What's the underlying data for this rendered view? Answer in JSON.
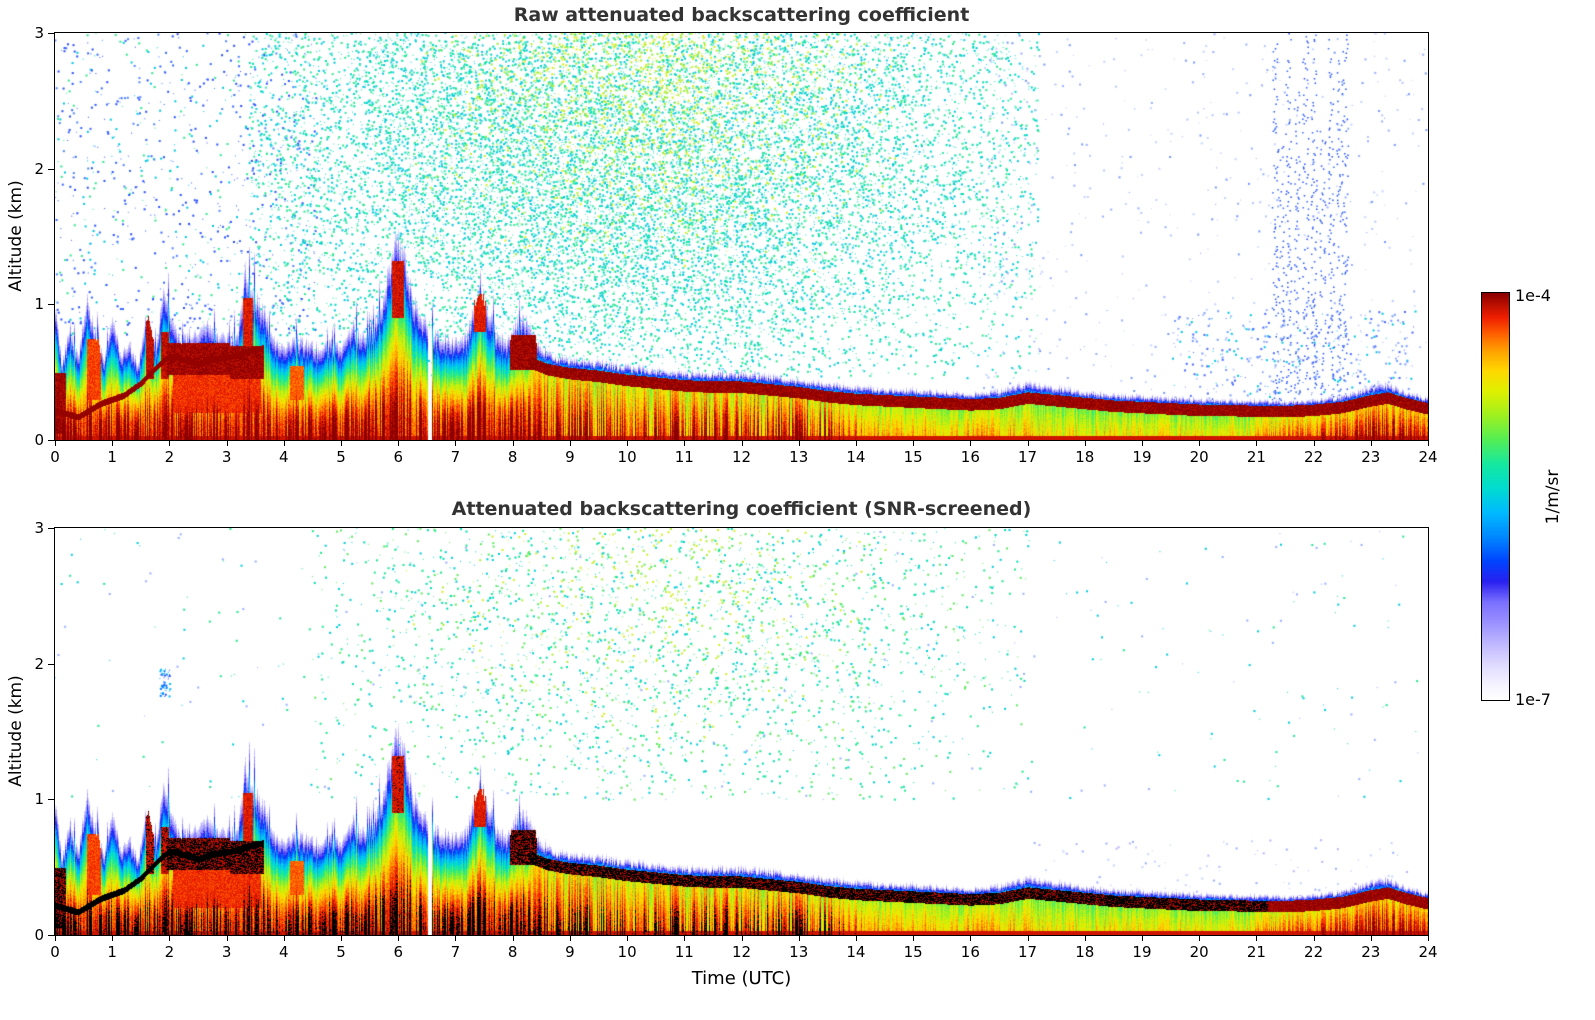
{
  "figure": {
    "background": "#ffffff"
  },
  "chart_data": {
    "type": "heatmap",
    "seed": 1337,
    "panels": [
      {
        "title": "Raw attenuated backscattering coefficient",
        "noise_regions": [
          {
            "t0": 0,
            "t1": 4.6,
            "z0": 0.75,
            "z1": 3,
            "density": 0.045,
            "colors": [
              "#2a50ff",
              "#3a6aff",
              "#5588ff",
              "#2a50ff",
              "#00c8e0",
              "#30e890"
            ]
          },
          {
            "t0": 3.4,
            "t1": 17.2,
            "z0": 0.45,
            "z1": 3,
            "density": 0.45,
            "gauss": {
              "tc": 10,
              "tw": 3.9,
              "zc": 2.3,
              "zw": 1.15
            },
            "colors": [
              "#00d8c8",
              "#00e0a8",
              "#30e890",
              "#00c8e0",
              "#40e8b0",
              "#20cfe0"
            ],
            "warm_colors": [
              "#b8ee30",
              "#d8f020",
              "#90ee40"
            ]
          },
          {
            "t0": 16.2,
            "t1": 24,
            "z0": 0.35,
            "z1": 3,
            "density": 0.014,
            "colors": [
              "#9ab0ff",
              "#b8c8ff",
              "#7a9aff",
              "#c8d4ff"
            ]
          },
          {
            "t0": 19.5,
            "t1": 23.8,
            "z0": 0.3,
            "z1": 0.95,
            "density": 0.05,
            "colors": [
              "#4a6aff",
              "#00c8e0",
              "#7aa0ff"
            ]
          },
          {
            "columns": [
              [
                21.32,
                3
              ],
              [
                21.42,
                2.2
              ],
              [
                21.55,
                3
              ],
              [
                21.7,
                2.6
              ],
              [
                21.85,
                3
              ],
              [
                22.0,
                3
              ],
              [
                22.15,
                2.4
              ],
              [
                22.3,
                3
              ],
              [
                22.45,
                2.8
              ],
              [
                22.55,
                3
              ]
            ],
            "width": 0.06,
            "z0": 0.08,
            "density": 0.3,
            "colors": [
              "#2a50ff",
              "#3a6aff",
              "#2255ee"
            ]
          }
        ]
      },
      {
        "title": "Attenuated backscattering coefficient (SNR-screened)",
        "black_threshold": 0.985,
        "noise_regions": [
          {
            "t0": 4.5,
            "t1": 17,
            "z0": 1.0,
            "z1": 3,
            "density": 0.11,
            "gauss": {
              "tc": 10.5,
              "tw": 3.6,
              "zc": 2.4,
              "zw": 0.95
            },
            "colors": [
              "#00ddb0",
              "#20e890",
              "#60ea60",
              "#00cdd8"
            ],
            "warm_colors": [
              "#b0ee38",
              "#d4ee28"
            ]
          },
          {
            "t0": 0,
            "t1": 24,
            "z0": 1.0,
            "z1": 3,
            "density": 0.004,
            "colors": [
              "#00cdd8",
              "#20e890",
              "#9ab0ff"
            ]
          },
          {
            "t0": 1.84,
            "t1": 2.0,
            "z0": 1.76,
            "z1": 1.96,
            "density": 0.6,
            "colors": [
              "#0088ff",
              "#00baff",
              "#2a50ff"
            ]
          },
          {
            "t0": 17,
            "t1": 23.8,
            "z0": 0.3,
            "z1": 0.7,
            "density": 0.02,
            "colors": [
              "#c8d4ff",
              "#9ab0ff",
              "#b8b6ff"
            ]
          }
        ]
      }
    ],
    "x": {
      "label": "Time (UTC)",
      "range": [
        0,
        24
      ],
      "ticks": [
        0,
        1,
        2,
        3,
        4,
        5,
        6,
        7,
        8,
        9,
        10,
        11,
        12,
        13,
        14,
        15,
        16,
        17,
        18,
        19,
        20,
        21,
        22,
        23,
        24
      ]
    },
    "y": {
      "label": "Altitude (km)",
      "range": [
        0,
        3
      ],
      "ticks": [
        0,
        1,
        2,
        3
      ]
    },
    "colorbar": {
      "label": "1/m/sr",
      "scale": "log",
      "min": 1e-07,
      "max": 0.0001,
      "min_label": "1e-7",
      "max_label": "1e-4",
      "stops": [
        [
          0.0,
          "#ffffff"
        ],
        [
          0.04,
          "#f4f2ff"
        ],
        [
          0.09,
          "#ddd8ff"
        ],
        [
          0.14,
          "#bdb6ff"
        ],
        [
          0.19,
          "#9a90ff"
        ],
        [
          0.24,
          "#7a70ff"
        ],
        [
          0.29,
          "#2a20f0"
        ],
        [
          0.34,
          "#0044ff"
        ],
        [
          0.4,
          "#0088ff"
        ],
        [
          0.46,
          "#00baff"
        ],
        [
          0.52,
          "#00dcd0"
        ],
        [
          0.58,
          "#16e8a0"
        ],
        [
          0.64,
          "#55ee55"
        ],
        [
          0.7,
          "#a0f020"
        ],
        [
          0.76,
          "#e0f000"
        ],
        [
          0.81,
          "#ffd800"
        ],
        [
          0.86,
          "#ffa000"
        ],
        [
          0.9,
          "#ff6000"
        ],
        [
          0.94,
          "#f02000"
        ],
        [
          1.0,
          "#8b0000"
        ]
      ]
    },
    "layer_top_profile": {
      "t": [
        0,
        0.12,
        0.25,
        0.4,
        0.55,
        0.7,
        0.85,
        1.0,
        1.15,
        1.3,
        1.45,
        1.6,
        1.75,
        1.9,
        2.05,
        2.2,
        2.4,
        2.6,
        2.8,
        3.0,
        3.2,
        3.32,
        3.5,
        3.65,
        3.8,
        4.0,
        4.2,
        4.4,
        4.6,
        4.8,
        5.0,
        5.2,
        5.35,
        5.5,
        5.7,
        5.85,
        5.97,
        6.1,
        6.25,
        6.4,
        6.6,
        6.8,
        7.0,
        7.2,
        7.4,
        7.55,
        7.7,
        7.9,
        8.1,
        8.25,
        8.45,
        8.7,
        9.0,
        9.5,
        10.0,
        10.5,
        11.0,
        11.5,
        12.0,
        12.5,
        13.0,
        13.5,
        14.0,
        14.5,
        15.0,
        15.5,
        16.0,
        16.5,
        17.0,
        17.5,
        18.0,
        18.5,
        19.0,
        19.5,
        20.0,
        20.5,
        21.0,
        21.5,
        22.0,
        22.5,
        23.0,
        23.3,
        23.6,
        24.0
      ],
      "h": [
        1.0,
        0.55,
        0.85,
        0.6,
        1.05,
        0.8,
        0.6,
        0.9,
        0.62,
        0.72,
        0.55,
        0.95,
        0.7,
        1.1,
        0.85,
        0.75,
        0.8,
        0.85,
        0.8,
        0.75,
        0.8,
        1.25,
        1.05,
        0.95,
        0.75,
        0.68,
        0.75,
        0.72,
        0.68,
        0.72,
        0.68,
        0.85,
        0.75,
        0.78,
        1.0,
        1.3,
        1.52,
        1.35,
        1.05,
        0.9,
        0.8,
        0.75,
        0.72,
        0.78,
        1.12,
        1.0,
        0.8,
        0.72,
        0.9,
        0.88,
        0.72,
        0.63,
        0.6,
        0.58,
        0.55,
        0.52,
        0.5,
        0.5,
        0.5,
        0.48,
        0.45,
        0.42,
        0.4,
        0.38,
        0.38,
        0.36,
        0.35,
        0.37,
        0.43,
        0.4,
        0.36,
        0.34,
        0.33,
        0.32,
        0.31,
        0.3,
        0.3,
        0.29,
        0.3,
        0.33,
        0.4,
        0.42,
        0.36,
        0.31
      ]
    },
    "cap_band": {
      "thickness": 0.07,
      "black_until": 21.2,
      "t": [
        8.3,
        8.6,
        9,
        9.5,
        10,
        10.5,
        11,
        11.5,
        12,
        12.5,
        13,
        13.5,
        14,
        14.5,
        15,
        15.5,
        16,
        16.5,
        17,
        17.5,
        18,
        18.5,
        19,
        19.5,
        20,
        20.5,
        21,
        21.5,
        22,
        22.5,
        23,
        23.3,
        23.6,
        24
      ],
      "z": [
        0.6,
        0.55,
        0.52,
        0.5,
        0.47,
        0.45,
        0.43,
        0.42,
        0.42,
        0.4,
        0.38,
        0.35,
        0.33,
        0.32,
        0.31,
        0.3,
        0.29,
        0.3,
        0.34,
        0.32,
        0.3,
        0.28,
        0.27,
        0.26,
        0.25,
        0.25,
        0.24,
        0.24,
        0.25,
        0.27,
        0.32,
        0.34,
        0.3,
        0.26
      ]
    },
    "elevated_band": {
      "t_end": 3.65,
      "t": [
        0,
        0.4,
        0.8,
        1.2,
        1.5,
        1.8,
        2.0,
        2.2,
        2.5,
        2.8,
        3.1,
        3.4,
        3.65
      ],
      "z": [
        0.22,
        0.17,
        0.27,
        0.33,
        0.42,
        0.55,
        0.62,
        0.6,
        0.56,
        0.6,
        0.62,
        0.66,
        0.68
      ]
    },
    "hot_blobs": [
      {
        "t0": 0.0,
        "t1": 0.18,
        "z0": 0.05,
        "z1": 0.5,
        "s": 0.99
      },
      {
        "t0": 0.55,
        "t1": 0.8,
        "z0": 0.3,
        "z1": 0.75,
        "s": 0.92
      },
      {
        "t0": 1.58,
        "t1": 1.72,
        "z0": 0.45,
        "z1": 0.92,
        "s": 0.97
      },
      {
        "t0": 1.84,
        "t1": 1.98,
        "z0": 0.45,
        "z1": 0.8,
        "s": 0.97
      },
      {
        "t0": 1.95,
        "t1": 3.05,
        "z0": 0.48,
        "z1": 0.72,
        "s": 0.99
      },
      {
        "t0": 3.05,
        "t1": 3.65,
        "z0": 0.45,
        "z1": 0.7,
        "s": 0.99
      },
      {
        "t0": 2.05,
        "t1": 3.6,
        "z0": 0.2,
        "z1": 0.5,
        "s": 0.93
      },
      {
        "t0": 3.28,
        "t1": 3.45,
        "z0": 0.7,
        "z1": 1.05,
        "s": 0.95
      },
      {
        "t0": 4.1,
        "t1": 4.35,
        "z0": 0.3,
        "z1": 0.55,
        "s": 0.9
      },
      {
        "t0": 5.88,
        "t1": 6.1,
        "z0": 0.9,
        "z1": 1.32,
        "s": 0.96
      },
      {
        "t0": 7.32,
        "t1": 7.52,
        "z0": 0.8,
        "z1": 1.08,
        "s": 0.95
      },
      {
        "t0": 7.95,
        "t1": 8.42,
        "z0": 0.52,
        "z1": 0.78,
        "s": 0.99
      }
    ],
    "heat_scale": {
      "t": [
        0,
        13.5,
        14.2,
        16.6,
        17.2,
        20.8,
        21.6,
        22.6,
        23.2,
        24
      ],
      "v": [
        1,
        1,
        0.86,
        0.86,
        0.82,
        0.82,
        0.92,
        0.96,
        1,
        0.96
      ]
    },
    "data_gaps": [
      [
        6.52,
        6.58
      ]
    ]
  }
}
